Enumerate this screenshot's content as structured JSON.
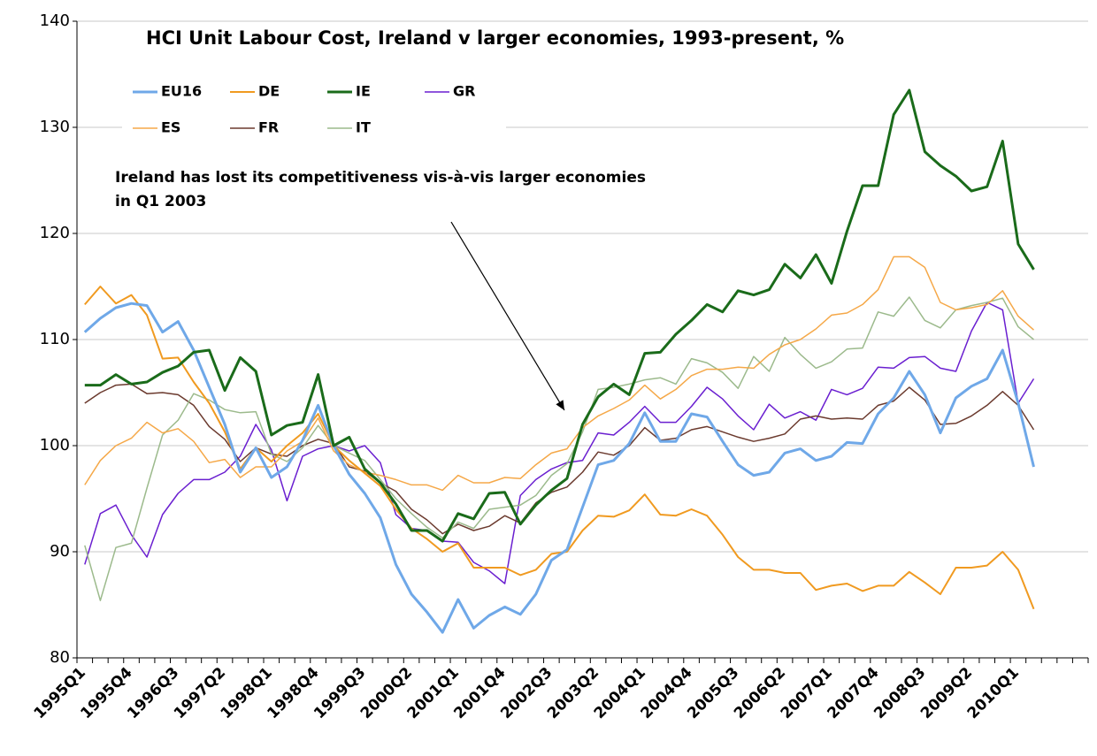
{
  "chart_data": {
    "type": "line",
    "title": "HCI Unit Labour Cost, Ireland v larger economies, 1993-present, %",
    "annotation": [
      "Ireland has lost its competitiveness vis-à-vis larger economies",
      "in Q1 2003"
    ],
    "categories": [
      "1995Q1",
      null,
      null,
      "1995Q4",
      null,
      null,
      "1996Q3",
      null,
      null,
      "1997Q2",
      null,
      null,
      "1998Q1",
      null,
      null,
      "1998Q4",
      null,
      null,
      "1999Q3",
      null,
      null,
      "2000Q2",
      null,
      null,
      "2001Q1",
      null,
      null,
      "2001Q4",
      null,
      null,
      "2002Q3",
      null,
      null,
      "2003Q2",
      null,
      null,
      "2004Q1",
      null,
      null,
      "2004Q4",
      null,
      null,
      "2005Q3",
      null,
      null,
      "2006Q2",
      null,
      null,
      "2007Q1",
      null,
      null,
      "2007Q4",
      null,
      null,
      "2008Q3",
      null,
      null,
      "2009Q2",
      null,
      null,
      "2010Q1",
      null,
      null,
      null,
      null
    ],
    "ylim": [
      80,
      140
    ],
    "yticks": [
      80,
      90,
      100,
      110,
      120,
      130,
      140
    ],
    "grid": true,
    "series": [
      {
        "name": "EU16",
        "color": "#6fa8e8",
        "width": 3,
        "values": [
          110.7,
          112,
          113,
          113.4,
          113.2,
          110.7,
          111.7,
          109,
          105.5,
          102,
          97.5,
          99.8,
          97,
          98,
          100.5,
          103.8,
          100,
          97.3,
          95.5,
          93.2,
          88.8,
          86,
          84.3,
          82.4,
          85.5,
          82.8,
          84,
          84.8,
          84.1,
          86,
          89.2,
          90.2,
          94.2,
          98.2,
          98.6,
          100.2,
          103.1,
          100.4,
          100.4,
          103,
          102.7,
          100.4,
          98.2,
          97.2,
          97.5,
          99.3,
          99.7,
          98.6,
          99,
          100.3,
          100.2,
          103,
          104.5,
          107,
          104.8,
          101.2,
          104.5,
          105.6,
          106.3,
          109,
          104,
          98,
          null,
          null,
          null
        ]
      },
      {
        "name": "DE",
        "color": "#f09a20",
        "width": 2,
        "values": [
          113.3,
          115,
          113.4,
          114.2,
          112.3,
          108.2,
          108.3,
          106,
          104,
          101.3,
          97.8,
          99.8,
          98.5,
          100,
          101.2,
          103,
          100,
          98.6,
          97.4,
          96.2,
          94,
          92.2,
          91.2,
          90,
          90.8,
          88.5,
          88.5,
          88.5,
          87.8,
          88.3,
          89.8,
          90,
          92,
          93.4,
          93.3,
          93.9,
          95.4,
          93.5,
          93.4,
          94,
          93.4,
          91.6,
          89.5,
          88.3,
          88.3,
          88,
          88,
          86.4,
          86.8,
          87,
          86.3,
          86.8,
          86.8,
          88.1,
          87.1,
          86,
          88.5,
          88.5,
          88.7,
          90,
          88.3,
          84.6,
          null,
          null,
          null
        ]
      },
      {
        "name": "IE",
        "color": "#1a6b1a",
        "width": 3,
        "values": [
          105.7,
          105.7,
          106.7,
          105.8,
          106,
          106.9,
          107.5,
          108.8,
          109,
          105.2,
          108.3,
          107,
          101,
          101.9,
          102.2,
          106.7,
          100,
          100.8,
          97.8,
          96.5,
          94.5,
          92,
          92,
          91,
          93.6,
          93.1,
          95.5,
          95.6,
          92.6,
          94.4,
          95.8,
          96.9,
          102,
          104.6,
          105.8,
          104.8,
          108.7,
          108.8,
          110.5,
          111.8,
          113.3,
          112.6,
          114.6,
          114.2,
          114.7,
          117.1,
          115.8,
          118,
          115.3,
          120.2,
          124.5,
          124.5,
          131.2,
          133.5,
          127.7,
          126.4,
          125.4,
          124,
          124.4,
          128.7,
          119,
          116.6,
          null,
          null,
          null
        ]
      },
      {
        "name": "GR",
        "color": "#6a1fd0",
        "width": 1.5,
        "values": [
          88.8,
          93.6,
          94.4,
          91.6,
          89.5,
          93.5,
          95.5,
          96.8,
          96.8,
          97.5,
          99,
          102,
          99.6,
          94.8,
          99,
          99.7,
          100,
          99.5,
          100,
          98.4,
          93.5,
          92.2,
          92,
          91,
          90.9,
          89,
          88.2,
          87,
          95.3,
          96.8,
          97.8,
          98.4,
          98.6,
          101.2,
          101,
          102.2,
          103.7,
          102.2,
          102.2,
          103.7,
          105.5,
          104.4,
          102.8,
          101.5,
          103.9,
          102.6,
          103.2,
          102.4,
          105.3,
          104.8,
          105.4,
          107.4,
          107.3,
          108.3,
          108.4,
          107.3,
          107,
          110.8,
          113.5,
          112.8,
          104,
          106.3,
          null,
          null,
          null
        ]
      },
      {
        "name": "ES",
        "color": "#f5a848",
        "width": 1.5,
        "values": [
          96.3,
          98.6,
          100,
          100.7,
          102.2,
          101.2,
          101.6,
          100.4,
          98.4,
          98.7,
          97,
          98,
          98,
          99.5,
          100.4,
          102.6,
          99.5,
          98.2,
          97.5,
          97.2,
          96.8,
          96.3,
          96.3,
          95.8,
          97.2,
          96.5,
          96.5,
          97,
          96.9,
          98.2,
          99.3,
          99.7,
          101.7,
          102.8,
          103.5,
          104.3,
          105.7,
          104.4,
          105.3,
          106.6,
          107.2,
          107.2,
          107.4,
          107.3,
          108.6,
          109.5,
          110,
          111,
          112.3,
          112.5,
          113.3,
          114.7,
          117.8,
          117.8,
          116.8,
          113.5,
          112.8,
          113,
          113.3,
          114.6,
          112.2,
          110.9,
          null,
          null,
          null
        ]
      },
      {
        "name": "FR",
        "color": "#6b3a2e",
        "width": 1.5,
        "values": [
          104,
          105,
          105.7,
          105.8,
          104.9,
          105,
          104.8,
          103.8,
          101.8,
          100.6,
          98.5,
          99.8,
          99.2,
          99,
          100,
          100.6,
          100.2,
          98,
          97.6,
          96.5,
          95.7,
          94,
          93,
          91.7,
          92.6,
          92,
          92.4,
          93.4,
          92.7,
          94.6,
          95.6,
          96.1,
          97.5,
          99.4,
          99.1,
          100,
          101.7,
          100.5,
          100.7,
          101.5,
          101.8,
          101.3,
          100.8,
          100.4,
          100.7,
          101.1,
          102.5,
          102.8,
          102.5,
          102.6,
          102.5,
          103.8,
          104.2,
          105.5,
          104.3,
          102,
          102.1,
          102.8,
          103.8,
          105.1,
          103.8,
          101.5,
          null,
          null,
          null
        ]
      },
      {
        "name": "IT",
        "color": "#9cba8c",
        "width": 1.5,
        "values": [
          90.6,
          85.4,
          90.4,
          90.8,
          96,
          101,
          102.4,
          104.9,
          104.3,
          103.4,
          103.1,
          103.2,
          99.2,
          98.5,
          99.8,
          101.9,
          100,
          99.3,
          98.6,
          96.8,
          95,
          93.6,
          92.3,
          91.3,
          92.8,
          92.2,
          94,
          94.2,
          94.4,
          95.3,
          97.2,
          98.3,
          101.3,
          105.3,
          105.5,
          105.8,
          106.2,
          106.4,
          105.8,
          108.2,
          107.8,
          106.9,
          105.4,
          108.4,
          107,
          110.2,
          108.6,
          107.3,
          107.9,
          109.1,
          109.2,
          112.6,
          112.2,
          114,
          111.8,
          111.1,
          112.8,
          113.2,
          113.5,
          113.9,
          111.2,
          110,
          null,
          null,
          null
        ]
      }
    ]
  }
}
